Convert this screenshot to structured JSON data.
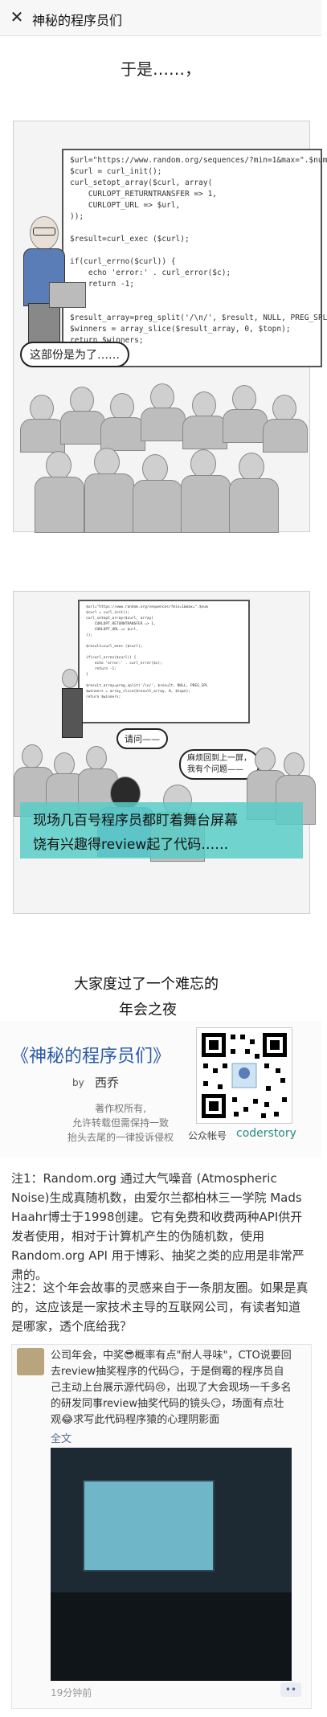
{
  "header": {
    "close_icon": "close-icon",
    "title": "神秘的程序员们"
  },
  "panel1": {
    "caption": "于是……，",
    "code_lines": [
      "$url=\"https://www.random.org/sequences/?min=1&max=\".$num",
      "$curl = curl_init();",
      "curl_setopt_array($curl, array(",
      "    CURLOPT_RETURNTRANSFER => 1,",
      "    CURLOPT_URL => $url,",
      "));",
      "",
      "$result=curl_exec ($curl);",
      "",
      "if(curl_errno($curl)) {",
      "    echo 'error:' . curl_error($c);",
      "    return -1;",
      "}",
      "",
      "$result_array=preg_split('/\\n/', $result, NULL, PREG_SPL",
      "$winners = array_slice($result_array, 0, $topn);",
      "return $winners;"
    ],
    "bubble": "这部份是为了……"
  },
  "panel2": {
    "bubble_left": "请问——",
    "bubble_right_1": "麻烦回到上一屏，",
    "bubble_right_2": "我有个问题——",
    "caption_1": "现场几百号程序员都盯着舞台屏幕",
    "caption_2": "饶有兴趣得review起了代码……"
  },
  "panel3": {
    "line1": "大家度过了一个难忘的",
    "line2": "年会之夜"
  },
  "cover": {
    "title": "《神秘的程序员们》",
    "by": "by",
    "author": "西乔",
    "legal_1": "著作权所有,",
    "legal_2": "允许转载但需保持一致",
    "legal_3": "抬头去尾的一律投诉侵权",
    "account_label": "公众帐号",
    "account_name": "coderstory"
  },
  "notes": {
    "note1": "注1：Random.org 通过大气噪音 (Atmospheric Noise)生成真随机数，由爱尔兰都柏林三一学院 Mads Haahr博士于1998创建。它有免费和收费两种API供开发者使用，相对于计算机产生的伪随机数，使用 Random.org API 用于博彩、抽奖之类的应用是非常严肃的。",
    "note2": "注2：这个年会故事的灵感来自于一条朋友圈。如果是真的，这应该是一家技术主导的互联网公司，有读者知道是哪家，透个底给我？"
  },
  "moment": {
    "text": "公司年会，中奖😎概率有点\"耐人寻味\"，CTO说要回去review抽奖程序的代码😏，于是倒霉的程序员自己主动上台展示源代码😢，出现了大会现场一千多名的研发同事review抽奖代码的镜头😏，场面有点壮观😂求写此代码程序猿的心理阴影面",
    "full_text_link": "全文",
    "time": "19分钟前",
    "comment_icon": "comment-icon"
  }
}
